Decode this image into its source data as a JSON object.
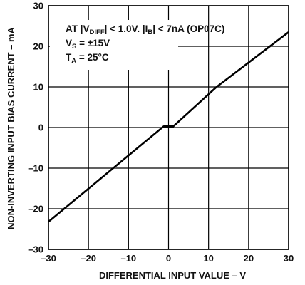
{
  "chart_data": {
    "type": "line",
    "xlabel": "DIFFERENTIAL INPUT VALUE – V",
    "ylabel": "NON-INVERTING INPUT BIAS CURRENT – mA",
    "xlim": [
      -30,
      30
    ],
    "ylim": [
      -30,
      30
    ],
    "x_ticks": [
      -30,
      -20,
      -10,
      0,
      10,
      20,
      30
    ],
    "y_ticks": [
      -30,
      -20,
      -10,
      0,
      10,
      20,
      30
    ],
    "x_tick_labels": [
      "–30",
      "–20",
      "–10",
      "0",
      "10",
      "20",
      "30"
    ],
    "y_tick_labels": [
      "–30",
      "–20",
      "–10",
      "0",
      "10",
      "20",
      "30"
    ],
    "grid": true,
    "series": [
      {
        "x": [
          -30,
          -1.2,
          1.2,
          12,
          30
        ],
        "y": [
          -23.2,
          0.3,
          0.3,
          10,
          23.5
        ]
      }
    ],
    "annotations": {
      "line1": {
        "a": "AT |V",
        "b": "DIFF",
        "c": "| < 1.0V. |I",
        "d": "B",
        "e": "| < 7nA (OP07C)"
      },
      "line2": {
        "a": "V",
        "b": "S",
        "c": " = ±15V"
      },
      "line3": {
        "a": "T",
        "b": "A",
        "c": " = 25°C"
      }
    },
    "colors": {
      "line": "#000000",
      "grid": "#000000",
      "text": "#111111"
    }
  }
}
